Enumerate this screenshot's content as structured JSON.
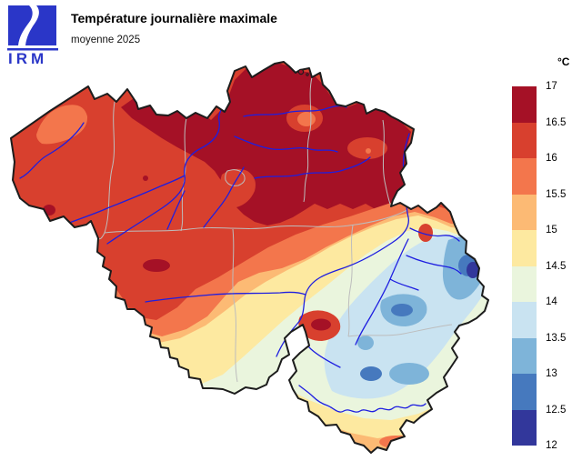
{
  "header": {
    "logo_text": "IRM",
    "logo_color": "#2a36c8",
    "title": "Température journalière maximale",
    "subtitle": "moyenne 2025"
  },
  "colorbar": {
    "unit": "°C",
    "min": 12,
    "max": 17,
    "step": 0.5,
    "tick_labels": [
      "17",
      "16.5",
      "16",
      "15.5",
      "15",
      "14.5",
      "14",
      "13.5",
      "13",
      "12.5",
      "12"
    ],
    "classes": [
      {
        "range": "16.5-17",
        "color": "#a51126"
      },
      {
        "range": "16-16.5",
        "color": "#d8402e"
      },
      {
        "range": "15.5-16",
        "color": "#f3764c"
      },
      {
        "range": "15-15.5",
        "color": "#fcba74"
      },
      {
        "range": "14.5-15",
        "color": "#fde9a0"
      },
      {
        "range": "14-14.5",
        "color": "#eaf5dd"
      },
      {
        "range": "13.5-14",
        "color": "#c9e3f1"
      },
      {
        "range": "13-13.5",
        "color": "#7eb4d9"
      },
      {
        "range": "12.5-13",
        "color": "#4679be"
      },
      {
        "range": "12-12.5",
        "color": "#32379b"
      }
    ]
  },
  "map": {
    "region": "Belgique",
    "background": "#ffffff",
    "borders": {
      "country": "#1c1c1c",
      "province": "#bdbdbd",
      "river": "#1e1ee0"
    }
  }
}
